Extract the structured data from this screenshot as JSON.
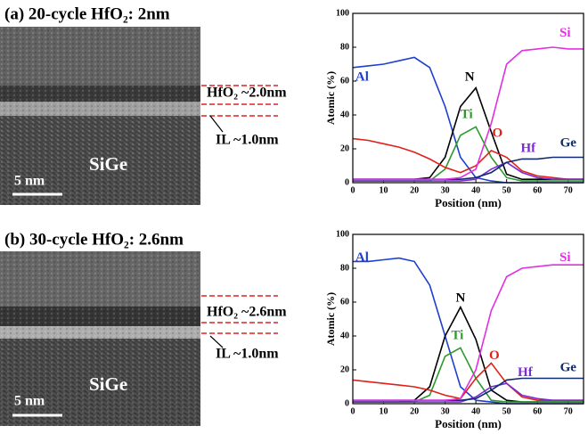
{
  "panels": [
    {
      "title": "(a) 20-cycle HfO₂: 2nm",
      "substrate": "SiGe",
      "scale": "5 nm",
      "hfo2": "HfO₂ ~2.0nm",
      "il": "IL ~1.0nm"
    },
    {
      "title": "(b) 30-cycle HfO₂: 2.6nm",
      "substrate": "SiGe",
      "scale": "5 nm",
      "hfo2": "HfO₂ ~2.6nm",
      "il": "IL ~1.0nm"
    }
  ],
  "chart_data": [
    {
      "type": "line",
      "xlabel": "Position (nm)",
      "ylabel": "Atomic (%)",
      "x": [
        0,
        5,
        10,
        15,
        20,
        25,
        30,
        35,
        40,
        45,
        50,
        55,
        60,
        65,
        70,
        75
      ],
      "xlim": [
        0,
        75
      ],
      "xticks": [
        0,
        10,
        20,
        30,
        40,
        50,
        60,
        70
      ],
      "ylim": [
        0,
        100
      ],
      "yticks": [
        0,
        20,
        40,
        60,
        80,
        100
      ],
      "series": [
        {
          "name": "Al",
          "color": "#1f3fd0",
          "values": [
            68,
            69,
            70,
            72,
            74,
            68,
            45,
            15,
            3,
            1,
            0,
            0,
            0,
            0,
            0,
            0
          ]
        },
        {
          "name": "N",
          "color": "#000000",
          "values": [
            2,
            2,
            2,
            2,
            2,
            3,
            15,
            45,
            56,
            30,
            5,
            2,
            2,
            2,
            2,
            2
          ]
        },
        {
          "name": "Ti",
          "color": "#2a9a2a",
          "values": [
            1,
            1,
            1,
            1,
            1,
            1,
            8,
            28,
            33,
            15,
            3,
            1,
            1,
            1,
            1,
            1
          ]
        },
        {
          "name": "O",
          "color": "#e0201a",
          "values": [
            26,
            25,
            23,
            21,
            18,
            14,
            9,
            6,
            10,
            19,
            15,
            7,
            4,
            3,
            2,
            2
          ]
        },
        {
          "name": "Hf",
          "color": "#7a2ad6",
          "values": [
            1,
            1,
            1,
            1,
            1,
            1,
            1,
            1,
            2,
            8,
            12,
            6,
            3,
            2,
            2,
            2
          ]
        },
        {
          "name": "Ge",
          "color": "#102a70",
          "values": [
            2,
            2,
            2,
            2,
            2,
            2,
            2,
            2,
            3,
            6,
            12,
            14,
            14,
            15,
            15,
            15
          ]
        },
        {
          "name": "Si",
          "color": "#e030e0",
          "values": [
            2,
            2,
            2,
            2,
            2,
            2,
            2,
            3,
            8,
            35,
            70,
            78,
            79,
            80,
            79,
            79
          ]
        }
      ]
    },
    {
      "type": "line",
      "xlabel": "Position (nm)",
      "ylabel": "Atomic (%)",
      "x": [
        0,
        5,
        10,
        15,
        20,
        25,
        30,
        35,
        40,
        45,
        50,
        55,
        60,
        65,
        70,
        75
      ],
      "xlim": [
        0,
        75
      ],
      "xticks": [
        0,
        10,
        20,
        30,
        40,
        50,
        60,
        70
      ],
      "ylim": [
        0,
        100
      ],
      "yticks": [
        0,
        20,
        40,
        60,
        80,
        100
      ],
      "series": [
        {
          "name": "Al",
          "color": "#1f3fd0",
          "values": [
            84,
            84,
            85,
            86,
            84,
            70,
            40,
            10,
            2,
            1,
            0,
            0,
            0,
            0,
            0,
            0
          ]
        },
        {
          "name": "N",
          "color": "#000000",
          "values": [
            1,
            1,
            1,
            1,
            2,
            10,
            40,
            57,
            38,
            8,
            2,
            1,
            1,
            1,
            1,
            1
          ]
        },
        {
          "name": "Ti",
          "color": "#2a9a2a",
          "values": [
            1,
            1,
            1,
            1,
            1,
            5,
            28,
            33,
            15,
            2,
            1,
            1,
            1,
            1,
            1,
            1
          ]
        },
        {
          "name": "O",
          "color": "#e0201a",
          "values": [
            14,
            13,
            12,
            11,
            10,
            8,
            5,
            3,
            15,
            24,
            12,
            4,
            2,
            2,
            2,
            2
          ]
        },
        {
          "name": "Hf",
          "color": "#7a2ad6",
          "values": [
            1,
            1,
            1,
            1,
            1,
            1,
            1,
            1,
            4,
            10,
            12,
            5,
            3,
            2,
            2,
            2
          ]
        },
        {
          "name": "Ge",
          "color": "#102a70",
          "values": [
            2,
            2,
            2,
            2,
            2,
            2,
            2,
            2,
            3,
            8,
            14,
            15,
            15,
            15,
            15,
            15
          ]
        },
        {
          "name": "Si",
          "color": "#e030e0",
          "values": [
            2,
            2,
            2,
            2,
            2,
            2,
            2,
            3,
            20,
            55,
            75,
            80,
            81,
            82,
            82,
            82
          ]
        }
      ]
    }
  ]
}
